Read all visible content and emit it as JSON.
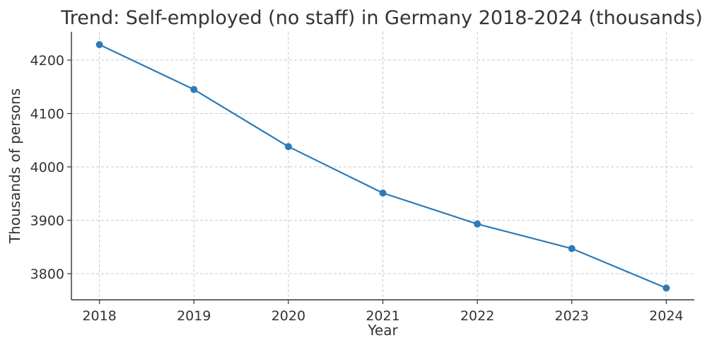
{
  "chart_data": {
    "type": "line",
    "title": "Trend: Self-employed (no staff) in Germany 2018-2024 (thousands)",
    "xlabel": "Year",
    "ylabel": "Thousands of persons",
    "x": [
      "2018",
      "2019",
      "2020",
      "2021",
      "2022",
      "2023",
      "2024"
    ],
    "series": [
      {
        "values": [
          4229,
          4145,
          4038,
          3951,
          3893,
          3847,
          3773
        ]
      }
    ],
    "ylim": [
      3751,
      4253
    ],
    "yticks": [
      3800,
      3900,
      4000,
      4100,
      4200
    ],
    "grid": true,
    "line_color": "#2b7bba",
    "marker": "circle"
  }
}
